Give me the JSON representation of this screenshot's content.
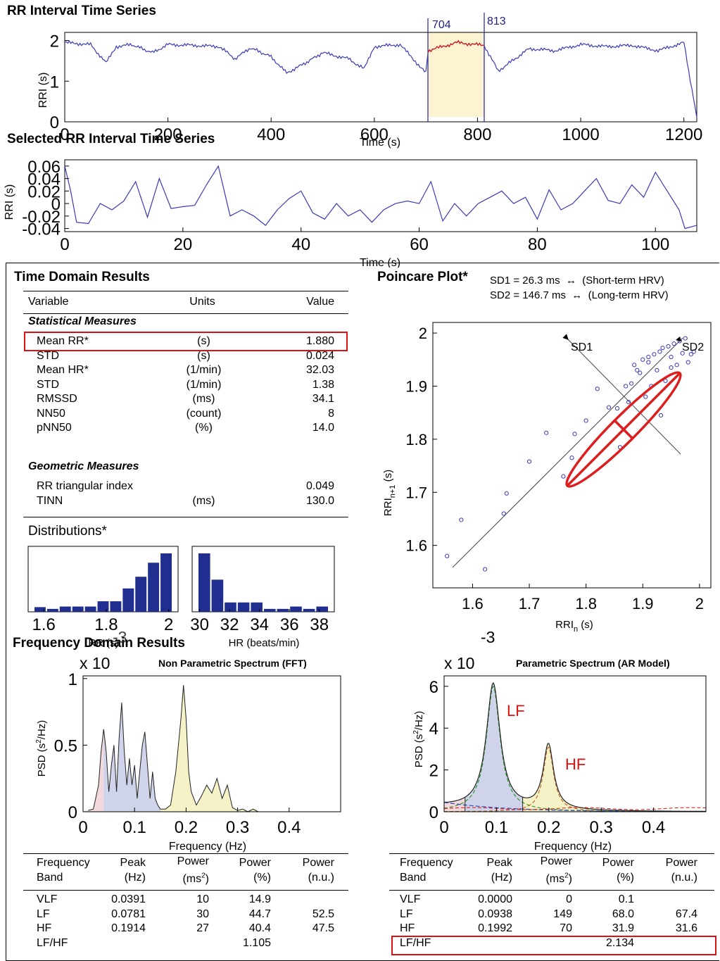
{
  "top_chart": {
    "title": "RR Interval Time Series",
    "ylabel": "RRI (s)",
    "xlabel": "Time (s)",
    "yticks": [
      "0",
      "1",
      "2"
    ],
    "xticks": [
      "0",
      "200",
      "400",
      "600",
      "800",
      "1000",
      "1200"
    ],
    "selection_start_label": "704",
    "selection_end_label": "813"
  },
  "selected_chart": {
    "title": "Selected RR Interval Time Series",
    "ylabel": "RRI (s)",
    "xlabel": "Time (s)",
    "yticks": [
      "0.06",
      "0.04",
      "0.02",
      "0",
      "-0.02",
      "-0.04"
    ],
    "xticks": [
      "0",
      "20",
      "40",
      "60",
      "80",
      "100"
    ]
  },
  "time_domain": {
    "title": "Time Domain Results",
    "headers": {
      "variable": "Variable",
      "units": "Units",
      "value": "Value"
    },
    "statistical_title": "Statistical Measures",
    "statistical": [
      {
        "variable": "Mean RR*",
        "units": "(s)",
        "value": "1.880"
      },
      {
        "variable": "STD",
        "units": "(s)",
        "value": "0.024"
      },
      {
        "variable": "Mean HR*",
        "units": "(1/min)",
        "value": "32.03"
      },
      {
        "variable": "STD",
        "units": "(1/min)",
        "value": "1.38"
      },
      {
        "variable": "RMSSD",
        "units": "(ms)",
        "value": "34.1"
      },
      {
        "variable": "NN50",
        "units": "(count)",
        "value": "8"
      },
      {
        "variable": "pNN50",
        "units": "(%)",
        "value": "14.0"
      }
    ],
    "geometric_title": "Geometric Measures",
    "geometric": [
      {
        "variable": "RR triangular index",
        "units": "",
        "value": "0.049"
      },
      {
        "variable": "TINN",
        "units": "(ms)",
        "value": "130.0"
      }
    ],
    "distributions_title": "Distributions*"
  },
  "distributions": {
    "rr_hist": {
      "xlabel": "RR (s)",
      "xticks": [
        "1.6",
        "1.8",
        "2"
      ],
      "values": [
        0.08,
        0.05,
        0.09,
        0.09,
        0.09,
        0.18,
        0.18,
        0.4,
        0.6,
        0.84,
        1.0
      ]
    },
    "hr_hist": {
      "xlabel": "HR (beats/min)",
      "xticks": [
        "30",
        "32",
        "34",
        "36",
        "38"
      ],
      "values": [
        1.0,
        0.55,
        0.16,
        0.16,
        0.16,
        0.05,
        0.05,
        0.09,
        0.05,
        0.09
      ]
    }
  },
  "poincare": {
    "title": "Poincare Plot*",
    "sd1": "SD1 = 26.3 ms  ↔  (Short-term HRV)",
    "sd2": "SD2 = 146.7 ms  ↔  (Long-term HRV)",
    "sd1_label": "SD1",
    "sd2_label": "SD2",
    "ylabel": "RRIn+1 (s)",
    "xlabel": "RRIn (s)",
    "yticks": [
      "2",
      "1.9",
      "1.8",
      "1.7",
      "1.6"
    ],
    "xticks": [
      "1.6",
      "1.7",
      "1.8",
      "1.9",
      "2"
    ],
    "points": [
      [
        1.555,
        1.58
      ],
      [
        1.58,
        1.648
      ],
      [
        1.622,
        1.555
      ],
      [
        1.655,
        1.66
      ],
      [
        1.66,
        1.698
      ],
      [
        1.7,
        1.758
      ],
      [
        1.73,
        1.812
      ],
      [
        1.76,
        1.73
      ],
      [
        1.775,
        1.765
      ],
      [
        1.78,
        1.81
      ],
      [
        1.8,
        1.835
      ],
      [
        1.82,
        1.895
      ],
      [
        1.84,
        1.86
      ],
      [
        1.855,
        1.858
      ],
      [
        1.86,
        1.785
      ],
      [
        1.87,
        1.9
      ],
      [
        1.875,
        1.87
      ],
      [
        1.88,
        1.905
      ],
      [
        1.885,
        1.94
      ],
      [
        1.89,
        1.93
      ],
      [
        1.895,
        1.925
      ],
      [
        1.9,
        1.95
      ],
      [
        1.905,
        1.88
      ],
      [
        1.91,
        1.955
      ],
      [
        1.915,
        1.9
      ],
      [
        1.92,
        1.96
      ],
      [
        1.925,
        1.93
      ],
      [
        1.93,
        1.965
      ],
      [
        1.932,
        1.845
      ],
      [
        1.935,
        1.972
      ],
      [
        1.94,
        1.91
      ],
      [
        1.945,
        1.975
      ],
      [
        1.95,
        1.955
      ],
      [
        1.955,
        1.98
      ],
      [
        1.96,
        1.94
      ],
      [
        1.965,
        1.985
      ],
      [
        1.97,
        1.962
      ],
      [
        1.975,
        1.99
      ],
      [
        1.98,
        1.945
      ],
      [
        1.985,
        1.96
      ],
      [
        1.99,
        1.965
      ],
      [
        1.95,
        1.935
      ],
      [
        1.91,
        1.945
      ]
    ]
  },
  "frequency_domain": {
    "title": "Frequency Domain Results",
    "fft": {
      "title": "Non Parametric Spectrum (FFT)",
      "multiplier": "x 10",
      "exponent": "-3",
      "ylabel": "PSD (s2/Hz)",
      "xlabel": "Frequency (Hz)",
      "yticks": [
        "1",
        "0.5",
        "0"
      ],
      "xticks": [
        "0",
        "0.1",
        "0.2",
        "0.3",
        "0.4"
      ]
    },
    "ar": {
      "title": "Parametric Spectrum (AR Model)",
      "multiplier": "x 10",
      "exponent": "-3",
      "ylabel": "PSD (s2/Hz)",
      "xlabel": "Frequency (Hz)",
      "yticks": [
        "6",
        "4",
        "2",
        "0"
      ],
      "xticks": [
        "0",
        "0.1",
        "0.2",
        "0.3",
        "0.4"
      ],
      "lf_label": "LF",
      "hf_label": "HF"
    },
    "headers": {
      "band": [
        "Frequency",
        "Band"
      ],
      "peak": [
        "Peak",
        "(Hz)"
      ],
      "power_ms": [
        "Power",
        "(ms2)"
      ],
      "power_pct": [
        "Power",
        "(%)"
      ],
      "power_nu": [
        "Power",
        "(n.u.)"
      ]
    },
    "fft_table": [
      {
        "band": "VLF",
        "peak": "0.0391",
        "ms": "10",
        "pct": "14.9",
        "nu": ""
      },
      {
        "band": "LF",
        "peak": "0.0781",
        "ms": "30",
        "pct": "44.7",
        "nu": "52.5"
      },
      {
        "band": "HF",
        "peak": "0.1914",
        "ms": "27",
        "pct": "40.4",
        "nu": "47.5"
      },
      {
        "band": "LF/HF",
        "peak": "",
        "ms": "",
        "pct": "1.105",
        "nu": ""
      }
    ],
    "ar_table": [
      {
        "band": "VLF",
        "peak": "0.0000",
        "ms": "0",
        "pct": "0.1",
        "nu": ""
      },
      {
        "band": "LF",
        "peak": "0.0938",
        "ms": "149",
        "pct": "68.0",
        "nu": "67.4"
      },
      {
        "band": "HF",
        "peak": "0.1992",
        "ms": "70",
        "pct": "31.9",
        "nu": "31.6"
      },
      {
        "band": "LF/HF",
        "peak": "",
        "ms": "",
        "pct": "2.134",
        "nu": ""
      }
    ]
  },
  "chart_data": [
    {
      "type": "line",
      "title": "RR Interval Time Series",
      "xlabel": "Time (s)",
      "ylabel": "RRI (s)",
      "xlim": [
        0,
        1225
      ],
      "ylim": [
        0,
        2.2
      ],
      "highlight_range": [
        704,
        813
      ],
      "x": [
        0,
        50,
        80,
        100,
        130,
        170,
        200,
        250,
        300,
        330,
        360,
        400,
        430,
        460,
        500,
        550,
        580,
        600,
        650,
        700,
        704,
        760,
        813,
        840,
        900,
        950,
        1000,
        1050,
        1100,
        1150,
        1200,
        1225
      ],
      "y": [
        1.95,
        1.9,
        1.45,
        1.85,
        1.9,
        1.7,
        1.9,
        1.88,
        1.85,
        1.55,
        1.82,
        1.6,
        1.2,
        1.4,
        1.7,
        1.55,
        1.3,
        1.85,
        1.9,
        1.2,
        1.75,
        1.95,
        1.88,
        1.25,
        1.8,
        1.75,
        1.9,
        1.85,
        1.88,
        1.75,
        1.95,
        0.1
      ]
    },
    {
      "type": "line",
      "title": "Selected RR Interval Time Series",
      "xlabel": "Time (s)",
      "ylabel": "RRI (s)",
      "xlim": [
        0,
        107
      ],
      "ylim": [
        -0.045,
        0.07
      ],
      "x": [
        0,
        1,
        2,
        4,
        6,
        8,
        10,
        12,
        14,
        16,
        18,
        20,
        22,
        24,
        26,
        28,
        30,
        32,
        34,
        36,
        38,
        40,
        42,
        44,
        46,
        48,
        50,
        52,
        54,
        56,
        58,
        60,
        62,
        64,
        66,
        68,
        70,
        72,
        74,
        76,
        78,
        80,
        82,
        84,
        86,
        88,
        90,
        92,
        94,
        96,
        98,
        100,
        102,
        104,
        105,
        107
      ],
      "y": [
        0.06,
        0.02,
        -0.03,
        -0.032,
        0.0,
        -0.01,
        0.004,
        0.035,
        -0.022,
        0.04,
        -0.008,
        -0.005,
        -0.003,
        0.03,
        0.06,
        -0.02,
        -0.01,
        -0.02,
        -0.035,
        -0.01,
        0.008,
        0.02,
        -0.015,
        -0.025,
        0.0,
        -0.02,
        -0.01,
        -0.03,
        -0.01,
        0.0,
        0.004,
        0.0,
        0.035,
        -0.028,
        0.0,
        -0.02,
        0.0,
        0.01,
        0.02,
        0.0,
        0.01,
        -0.025,
        0.022,
        -0.01,
        0.0,
        0.02,
        0.04,
        0.005,
        0.0,
        0.03,
        0.01,
        0.05,
        0.02,
        -0.01,
        -0.04,
        -0.035
      ]
    },
    {
      "type": "bar",
      "title": "Distributions*",
      "xlabel": "RR (s)",
      "x_range": [
        1.55,
        2.03
      ],
      "values": [
        0.08,
        0.05,
        0.09,
        0.09,
        0.09,
        0.18,
        0.18,
        0.4,
        0.6,
        0.84,
        1.0
      ]
    },
    {
      "type": "bar",
      "xlabel": "HR (beats/min)",
      "x_range": [
        29.5,
        39.0
      ],
      "values": [
        1.0,
        0.55,
        0.16,
        0.16,
        0.16,
        0.05,
        0.05,
        0.09,
        0.05,
        0.09
      ]
    },
    {
      "type": "scatter",
      "title": "Poincare Plot*",
      "xlabel": "RRIn (s)",
      "ylabel": "RRIn+1 (s)",
      "xlim": [
        1.53,
        2.02
      ],
      "ylim": [
        1.52,
        2.02
      ]
    },
    {
      "type": "area",
      "title": "Non Parametric Spectrum (FFT)",
      "xlabel": "Frequency (Hz)",
      "ylabel": "PSD (s2/Hz)",
      "xlim": [
        0,
        0.5
      ],
      "ylim": [
        0,
        1.02
      ],
      "bands": [
        [
          0,
          0.04
        ],
        [
          0.04,
          0.15
        ],
        [
          0.15,
          0.4
        ]
      ],
      "x": [
        0.01,
        0.02,
        0.03,
        0.035,
        0.04,
        0.045,
        0.05,
        0.055,
        0.06,
        0.065,
        0.07,
        0.075,
        0.08,
        0.085,
        0.09,
        0.095,
        0.1,
        0.105,
        0.11,
        0.115,
        0.12,
        0.125,
        0.13,
        0.135,
        0.14,
        0.145,
        0.15,
        0.16,
        0.17,
        0.18,
        0.19,
        0.195,
        0.2,
        0.205,
        0.21,
        0.22,
        0.23,
        0.24,
        0.25,
        0.26,
        0.27,
        0.28,
        0.29,
        0.3,
        0.31,
        0.32,
        0.33,
        0.34
      ],
      "y": [
        0.01,
        0.02,
        0.2,
        0.45,
        0.62,
        0.45,
        0.15,
        0.35,
        0.5,
        0.15,
        0.55,
        0.82,
        0.45,
        0.2,
        0.4,
        0.2,
        0.35,
        0.1,
        0.3,
        0.5,
        0.6,
        0.35,
        0.1,
        0.3,
        0.1,
        0.05,
        0.02,
        0.02,
        0.05,
        0.3,
        0.7,
        0.95,
        0.7,
        0.3,
        0.15,
        0.05,
        0.12,
        0.2,
        0.14,
        0.25,
        0.1,
        0.2,
        0.03,
        0.01,
        0.02,
        0.0,
        0.02,
        0.0
      ]
    },
    {
      "type": "line",
      "title": "Parametric Spectrum (AR Model)",
      "xlabel": "Frequency (Hz)",
      "ylabel": "PSD (s2/Hz)",
      "xlim": [
        0,
        0.5
      ],
      "ylim": [
        0,
        6.5
      ],
      "peaks": [
        {
          "f": 0.0938,
          "psd": 6.0
        },
        {
          "f": 0.1992,
          "psd": 3.2
        }
      ]
    }
  ]
}
